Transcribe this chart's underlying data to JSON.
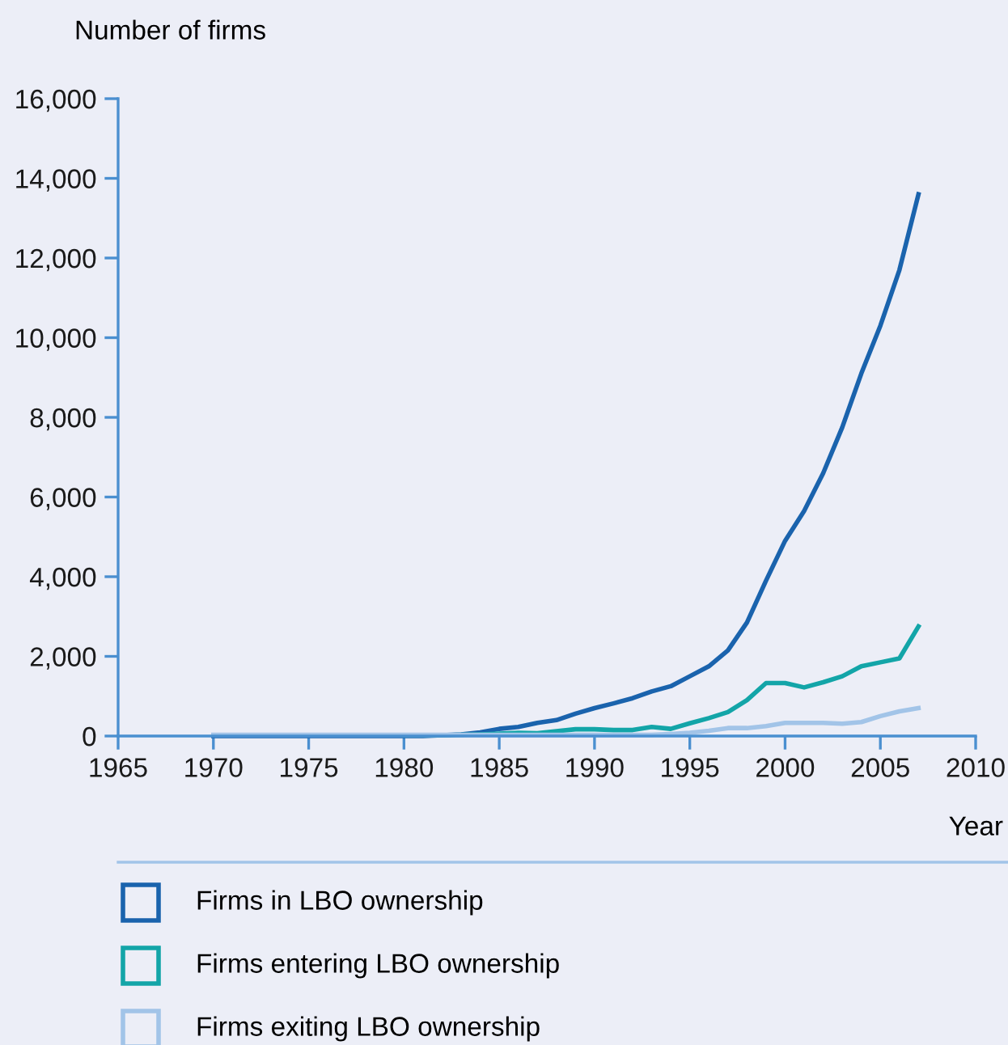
{
  "chart_data": {
    "type": "line",
    "ylabel": "Number of firms",
    "xlabel": "Year",
    "x": [
      1970,
      1971,
      1972,
      1973,
      1974,
      1975,
      1976,
      1977,
      1978,
      1979,
      1980,
      1981,
      1982,
      1983,
      1984,
      1985,
      1986,
      1987,
      1988,
      1989,
      1990,
      1991,
      1992,
      1993,
      1994,
      1995,
      1996,
      1997,
      1998,
      1999,
      2000,
      2001,
      2002,
      2003,
      2004,
      2005,
      2006,
      2007
    ],
    "series": [
      {
        "name": "Firms in LBO ownership",
        "color": "#1a63ad",
        "values": [
          0,
          0,
          0,
          0,
          0,
          0,
          0,
          0,
          0,
          0,
          0,
          0,
          20,
          40,
          90,
          180,
          230,
          330,
          400,
          560,
          700,
          820,
          950,
          1120,
          1250,
          1500,
          1750,
          2150,
          2850,
          3900,
          4900,
          5650,
          6600,
          7750,
          9100,
          10300,
          11700,
          13600
        ]
      },
      {
        "name": "Firms entering LBO ownership",
        "color": "#13a5a8",
        "values": [
          null,
          null,
          null,
          null,
          null,
          null,
          null,
          null,
          null,
          null,
          20,
          20,
          20,
          30,
          40,
          60,
          80,
          70,
          120,
          170,
          170,
          150,
          150,
          230,
          180,
          320,
          450,
          600,
          900,
          1330,
          1330,
          1220,
          1350,
          1500,
          1750,
          1850,
          1950,
          2750
        ]
      },
      {
        "name": "Firms exiting LBO ownership",
        "color": "#a2c4e8",
        "values": [
          30,
          30,
          30,
          30,
          30,
          30,
          30,
          30,
          30,
          30,
          30,
          30,
          30,
          30,
          30,
          30,
          30,
          30,
          30,
          30,
          30,
          30,
          30,
          30,
          50,
          80,
          130,
          200,
          200,
          250,
          330,
          330,
          330,
          310,
          350,
          500,
          620,
          700
        ]
      }
    ],
    "xlim": [
      1965,
      2010
    ],
    "xticks": [
      1965,
      1970,
      1975,
      1980,
      1985,
      1990,
      1995,
      2000,
      2005,
      2010
    ],
    "ylim": [
      0,
      16000
    ],
    "yticks": [
      {
        "value": 0,
        "label": "0"
      },
      {
        "value": 2000,
        "label": "2,000"
      },
      {
        "value": 4000,
        "label": "4,000"
      },
      {
        "value": 6000,
        "label": "6,000"
      },
      {
        "value": 8000,
        "label": "8,000"
      },
      {
        "value": 10000,
        "label": "10,000"
      },
      {
        "value": 12000,
        "label": "12,000"
      },
      {
        "value": 14000,
        "label": "14,000"
      },
      {
        "value": 16000,
        "label": "16,000"
      }
    ],
    "grid": false,
    "legend": "bottom",
    "marker": "none",
    "line_style": "solid"
  }
}
